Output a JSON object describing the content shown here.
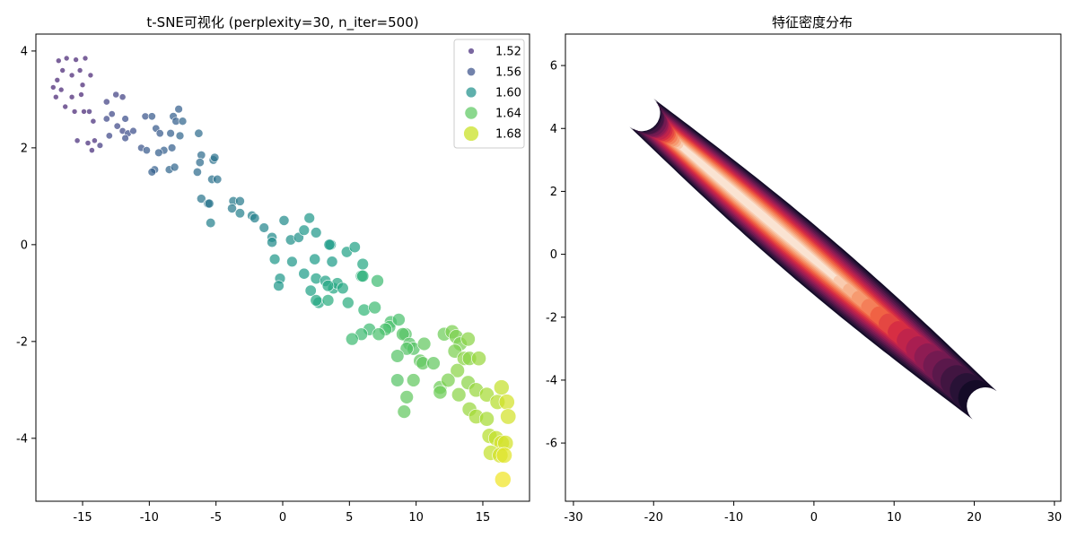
{
  "chart_data": [
    {
      "type": "scatter",
      "title": "t-SNE可视化 (perplexity=30, n_iter=500)",
      "xlabel": "",
      "ylabel": "",
      "xlim": [
        -18.5,
        18.5
      ],
      "ylim": [
        -5.3,
        4.35
      ],
      "xticks": [
        -15,
        -10,
        -5,
        0,
        5,
        10,
        15
      ],
      "yticks": [
        -4,
        -2,
        0,
        2,
        4
      ],
      "grid": false,
      "legend_position": "top-right",
      "colormap": "viridis",
      "legend": [
        {
          "label": "1.52",
          "value": 1.52,
          "color": "#472d7b"
        },
        {
          "label": "1.56",
          "value": 1.56,
          "color": "#3b528b"
        },
        {
          "label": "1.60",
          "value": 1.6,
          "color": "#21918c"
        },
        {
          "label": "1.64",
          "value": 1.64,
          "color": "#5ec962"
        },
        {
          "label": "1.68",
          "value": 1.68,
          "color": "#c8e020"
        }
      ],
      "points": [
        {
          "x": -16.8,
          "y": 3.8,
          "v": 1.505
        },
        {
          "x": -16.2,
          "y": 3.85,
          "v": 1.505
        },
        {
          "x": -15.5,
          "y": 3.82,
          "v": 1.505
        },
        {
          "x": -14.8,
          "y": 3.85,
          "v": 1.505
        },
        {
          "x": -16.5,
          "y": 3.6,
          "v": 1.505
        },
        {
          "x": -15.8,
          "y": 3.5,
          "v": 1.505
        },
        {
          "x": -15.2,
          "y": 3.6,
          "v": 1.505
        },
        {
          "x": -14.4,
          "y": 3.5,
          "v": 1.505
        },
        {
          "x": -16.9,
          "y": 3.4,
          "v": 1.505
        },
        {
          "x": -17.2,
          "y": 3.25,
          "v": 1.505
        },
        {
          "x": -16.6,
          "y": 3.2,
          "v": 1.505
        },
        {
          "x": -15.8,
          "y": 3.05,
          "v": 1.505
        },
        {
          "x": -15.0,
          "y": 3.3,
          "v": 1.505
        },
        {
          "x": -15.1,
          "y": 3.1,
          "v": 1.505
        },
        {
          "x": -17.0,
          "y": 3.05,
          "v": 1.505
        },
        {
          "x": -16.3,
          "y": 2.85,
          "v": 1.505
        },
        {
          "x": -15.6,
          "y": 2.75,
          "v": 1.505
        },
        {
          "x": -14.9,
          "y": 2.75,
          "v": 1.505
        },
        {
          "x": -14.5,
          "y": 2.75,
          "v": 1.51
        },
        {
          "x": -14.2,
          "y": 2.55,
          "v": 1.51
        },
        {
          "x": -15.4,
          "y": 2.15,
          "v": 1.51
        },
        {
          "x": -14.6,
          "y": 2.1,
          "v": 1.51
        },
        {
          "x": -14.1,
          "y": 2.15,
          "v": 1.51
        },
        {
          "x": -14.3,
          "y": 1.95,
          "v": 1.51
        },
        {
          "x": -13.7,
          "y": 2.05,
          "v": 1.52
        },
        {
          "x": -13.2,
          "y": 2.95,
          "v": 1.525
        },
        {
          "x": -12.5,
          "y": 3.1,
          "v": 1.525
        },
        {
          "x": -12.0,
          "y": 3.05,
          "v": 1.525
        },
        {
          "x": -12.8,
          "y": 2.7,
          "v": 1.53
        },
        {
          "x": -13.2,
          "y": 2.6,
          "v": 1.53
        },
        {
          "x": -12.4,
          "y": 2.45,
          "v": 1.53
        },
        {
          "x": -12.0,
          "y": 2.35,
          "v": 1.53
        },
        {
          "x": -11.6,
          "y": 2.3,
          "v": 1.535
        },
        {
          "x": -11.2,
          "y": 2.35,
          "v": 1.535
        },
        {
          "x": -11.8,
          "y": 2.2,
          "v": 1.535
        },
        {
          "x": -13.0,
          "y": 2.25,
          "v": 1.53
        },
        {
          "x": -11.8,
          "y": 2.6,
          "v": 1.535
        },
        {
          "x": -10.6,
          "y": 2.0,
          "v": 1.54
        },
        {
          "x": -10.3,
          "y": 2.65,
          "v": 1.54
        },
        {
          "x": -9.8,
          "y": 2.65,
          "v": 1.545
        },
        {
          "x": -9.5,
          "y": 2.4,
          "v": 1.545
        },
        {
          "x": -9.2,
          "y": 2.3,
          "v": 1.545
        },
        {
          "x": -10.2,
          "y": 1.95,
          "v": 1.545
        },
        {
          "x": -8.9,
          "y": 1.95,
          "v": 1.55
        },
        {
          "x": -8.4,
          "y": 2.3,
          "v": 1.55
        },
        {
          "x": -8.2,
          "y": 2.65,
          "v": 1.55
        },
        {
          "x": -7.8,
          "y": 2.8,
          "v": 1.55
        },
        {
          "x": -8.0,
          "y": 2.55,
          "v": 1.55
        },
        {
          "x": -7.5,
          "y": 2.55,
          "v": 1.555
        },
        {
          "x": -8.3,
          "y": 2.0,
          "v": 1.55
        },
        {
          "x": -9.3,
          "y": 1.9,
          "v": 1.55
        },
        {
          "x": -9.6,
          "y": 1.55,
          "v": 1.55
        },
        {
          "x": -9.8,
          "y": 1.5,
          "v": 1.55
        },
        {
          "x": -8.5,
          "y": 1.55,
          "v": 1.555
        },
        {
          "x": -8.1,
          "y": 1.6,
          "v": 1.555
        },
        {
          "x": -7.7,
          "y": 2.25,
          "v": 1.555
        },
        {
          "x": -6.3,
          "y": 2.3,
          "v": 1.56
        },
        {
          "x": -6.1,
          "y": 1.85,
          "v": 1.56
        },
        {
          "x": -6.2,
          "y": 1.7,
          "v": 1.56
        },
        {
          "x": -6.4,
          "y": 1.5,
          "v": 1.56
        },
        {
          "x": -5.2,
          "y": 1.75,
          "v": 1.565
        },
        {
          "x": -5.1,
          "y": 1.8,
          "v": 1.565
        },
        {
          "x": -5.3,
          "y": 1.35,
          "v": 1.565
        },
        {
          "x": -4.9,
          "y": 1.35,
          "v": 1.565
        },
        {
          "x": -6.1,
          "y": 0.95,
          "v": 1.57
        },
        {
          "x": -5.6,
          "y": 0.85,
          "v": 1.57
        },
        {
          "x": -5.5,
          "y": 0.85,
          "v": 1.57
        },
        {
          "x": -3.7,
          "y": 0.9,
          "v": 1.575
        },
        {
          "x": -3.2,
          "y": 0.9,
          "v": 1.575
        },
        {
          "x": -3.8,
          "y": 0.75,
          "v": 1.575
        },
        {
          "x": -3.2,
          "y": 0.65,
          "v": 1.58
        },
        {
          "x": -2.3,
          "y": 0.6,
          "v": 1.58
        },
        {
          "x": -2.1,
          "y": 0.55,
          "v": 1.58
        },
        {
          "x": -5.4,
          "y": 0.45,
          "v": 1.58
        },
        {
          "x": -1.4,
          "y": 0.35,
          "v": 1.585
        },
        {
          "x": -0.8,
          "y": 0.15,
          "v": 1.59
        },
        {
          "x": -0.8,
          "y": 0.05,
          "v": 1.59
        },
        {
          "x": 0.1,
          "y": 0.5,
          "v": 1.59
        },
        {
          "x": 0.6,
          "y": 0.1,
          "v": 1.595
        },
        {
          "x": 1.2,
          "y": 0.15,
          "v": 1.595
        },
        {
          "x": 1.6,
          "y": 0.3,
          "v": 1.6
        },
        {
          "x": 2.0,
          "y": 0.55,
          "v": 1.6
        },
        {
          "x": 2.5,
          "y": 0.25,
          "v": 1.6
        },
        {
          "x": 3.6,
          "y": 0.0,
          "v": 1.605
        },
        {
          "x": 3.5,
          "y": 0.0,
          "v": 1.605
        },
        {
          "x": 4.8,
          "y": -0.15,
          "v": 1.61
        },
        {
          "x": 5.4,
          "y": -0.05,
          "v": 1.61
        },
        {
          "x": 6.0,
          "y": -0.4,
          "v": 1.615
        },
        {
          "x": -0.6,
          "y": -0.3,
          "v": 1.6
        },
        {
          "x": 0.7,
          "y": -0.35,
          "v": 1.6
        },
        {
          "x": 2.4,
          "y": -0.3,
          "v": 1.605
        },
        {
          "x": 3.7,
          "y": -0.35,
          "v": 1.605
        },
        {
          "x": 1.6,
          "y": -0.6,
          "v": 1.605
        },
        {
          "x": -0.2,
          "y": -0.7,
          "v": 1.6
        },
        {
          "x": -0.3,
          "y": -0.85,
          "v": 1.6
        },
        {
          "x": 2.5,
          "y": -0.7,
          "v": 1.61
        },
        {
          "x": 3.2,
          "y": -0.75,
          "v": 1.61
        },
        {
          "x": 2.1,
          "y": -0.95,
          "v": 1.61
        },
        {
          "x": 3.8,
          "y": -0.9,
          "v": 1.615
        },
        {
          "x": 4.1,
          "y": -0.8,
          "v": 1.615
        },
        {
          "x": 4.5,
          "y": -0.9,
          "v": 1.615
        },
        {
          "x": 3.4,
          "y": -0.85,
          "v": 1.615
        },
        {
          "x": 2.7,
          "y": -1.2,
          "v": 1.615
        },
        {
          "x": 2.5,
          "y": -1.15,
          "v": 1.615
        },
        {
          "x": 3.4,
          "y": -1.15,
          "v": 1.62
        },
        {
          "x": 4.9,
          "y": -1.2,
          "v": 1.62
        },
        {
          "x": 5.9,
          "y": -0.65,
          "v": 1.625
        },
        {
          "x": 6.0,
          "y": -0.65,
          "v": 1.625
        },
        {
          "x": 7.1,
          "y": -0.75,
          "v": 1.635
        },
        {
          "x": 6.1,
          "y": -1.35,
          "v": 1.63
        },
        {
          "x": 6.9,
          "y": -1.3,
          "v": 1.635
        },
        {
          "x": 8.1,
          "y": -1.6,
          "v": 1.64
        },
        {
          "x": 8.0,
          "y": -1.7,
          "v": 1.64
        },
        {
          "x": 7.7,
          "y": -1.75,
          "v": 1.64
        },
        {
          "x": 8.7,
          "y": -1.55,
          "v": 1.64
        },
        {
          "x": 6.5,
          "y": -1.75,
          "v": 1.635
        },
        {
          "x": 7.2,
          "y": -1.85,
          "v": 1.64
        },
        {
          "x": 5.9,
          "y": -1.85,
          "v": 1.635
        },
        {
          "x": 5.2,
          "y": -1.95,
          "v": 1.635
        },
        {
          "x": 9.2,
          "y": -1.85,
          "v": 1.645
        },
        {
          "x": 9.0,
          "y": -1.85,
          "v": 1.645
        },
        {
          "x": 9.5,
          "y": -2.05,
          "v": 1.645
        },
        {
          "x": 9.8,
          "y": -2.15,
          "v": 1.645
        },
        {
          "x": 9.3,
          "y": -2.15,
          "v": 1.645
        },
        {
          "x": 8.6,
          "y": -2.3,
          "v": 1.645
        },
        {
          "x": 10.3,
          "y": -2.4,
          "v": 1.65
        },
        {
          "x": 10.5,
          "y": -2.45,
          "v": 1.65
        },
        {
          "x": 11.3,
          "y": -2.45,
          "v": 1.65
        },
        {
          "x": 10.6,
          "y": -2.05,
          "v": 1.65
        },
        {
          "x": 12.1,
          "y": -1.85,
          "v": 1.655
        },
        {
          "x": 12.7,
          "y": -1.8,
          "v": 1.66
        },
        {
          "x": 13.0,
          "y": -1.9,
          "v": 1.66
        },
        {
          "x": 13.3,
          "y": -2.05,
          "v": 1.66
        },
        {
          "x": 13.9,
          "y": -1.95,
          "v": 1.665
        },
        {
          "x": 12.9,
          "y": -2.2,
          "v": 1.66
        },
        {
          "x": 13.6,
          "y": -2.35,
          "v": 1.665
        },
        {
          "x": 14.0,
          "y": -2.35,
          "v": 1.665
        },
        {
          "x": 14.7,
          "y": -2.35,
          "v": 1.67
        },
        {
          "x": 13.1,
          "y": -2.6,
          "v": 1.665
        },
        {
          "x": 8.6,
          "y": -2.8,
          "v": 1.645
        },
        {
          "x": 9.8,
          "y": -2.8,
          "v": 1.65
        },
        {
          "x": 11.8,
          "y": -2.95,
          "v": 1.655
        },
        {
          "x": 11.8,
          "y": -3.05,
          "v": 1.655
        },
        {
          "x": 12.4,
          "y": -2.8,
          "v": 1.66
        },
        {
          "x": 13.9,
          "y": -2.85,
          "v": 1.665
        },
        {
          "x": 14.5,
          "y": -3.0,
          "v": 1.67
        },
        {
          "x": 13.2,
          "y": -3.1,
          "v": 1.665
        },
        {
          "x": 15.3,
          "y": -3.1,
          "v": 1.675
        },
        {
          "x": 16.1,
          "y": -3.25,
          "v": 1.68
        },
        {
          "x": 16.4,
          "y": -2.95,
          "v": 1.685
        },
        {
          "x": 16.8,
          "y": -3.25,
          "v": 1.69
        },
        {
          "x": 9.3,
          "y": -3.15,
          "v": 1.65
        },
        {
          "x": 9.1,
          "y": -3.45,
          "v": 1.65
        },
        {
          "x": 14.0,
          "y": -3.4,
          "v": 1.67
        },
        {
          "x": 14.5,
          "y": -3.55,
          "v": 1.675
        },
        {
          "x": 15.3,
          "y": -3.6,
          "v": 1.675
        },
        {
          "x": 16.9,
          "y": -3.55,
          "v": 1.69
        },
        {
          "x": 15.5,
          "y": -3.95,
          "v": 1.68
        },
        {
          "x": 16.0,
          "y": -4.0,
          "v": 1.685
        },
        {
          "x": 16.4,
          "y": -4.1,
          "v": 1.69
        },
        {
          "x": 16.7,
          "y": -4.1,
          "v": 1.69
        },
        {
          "x": 15.6,
          "y": -4.3,
          "v": 1.685
        },
        {
          "x": 16.3,
          "y": -4.35,
          "v": 1.69
        },
        {
          "x": 16.6,
          "y": -4.35,
          "v": 1.695
        },
        {
          "x": 16.5,
          "y": -4.85,
          "v": 1.7
        }
      ]
    },
    {
      "type": "heatmap",
      "title": "特征密度分布",
      "xlabel": "",
      "ylabel": "",
      "xlim": [
        -31.0,
        30.8
      ],
      "ylim": [
        -7.85,
        7.0
      ],
      "xticks": [
        -30,
        -20,
        -10,
        0,
        10,
        20,
        30
      ],
      "yticks": [
        -6,
        -4,
        -2,
        0,
        2,
        4,
        6
      ],
      "grid": false,
      "colormap": "rocket",
      "density_ridge": {
        "start": [
          -21.5,
          4.5
        ],
        "end": [
          21.3,
          -4.8
        ],
        "peak": [
          -12.0,
          2.7
        ]
      }
    }
  ]
}
